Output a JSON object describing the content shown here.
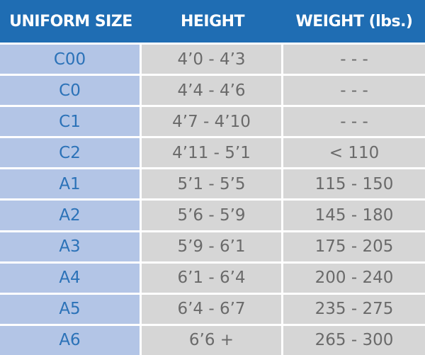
{
  "table": {
    "header": [
      "UNIFORM SIZE",
      "HEIGHT",
      "WEIGHT (lbs.)"
    ],
    "rows": [
      [
        "C00",
        "4’0 - 4’3",
        "- - -"
      ],
      [
        "C0",
        "4’4 - 4’6",
        "- - -"
      ],
      [
        "C1",
        "4’7 - 4’10",
        "- - -"
      ],
      [
        "C2",
        "4’11 - 5’1",
        "< 110"
      ],
      [
        "A1",
        "5’1 - 5’5",
        "115 - 150"
      ],
      [
        "A2",
        "5’6 - 5’9",
        "145 - 180"
      ],
      [
        "A3",
        "5’9 - 6’1",
        "175 - 205"
      ],
      [
        "A4",
        "6’1 - 6’4",
        "200 - 240"
      ],
      [
        "A5",
        "6’4 - 6’7",
        "235 - 275"
      ],
      [
        "A6",
        "6’6 +",
        "265 - 300"
      ]
    ]
  }
}
